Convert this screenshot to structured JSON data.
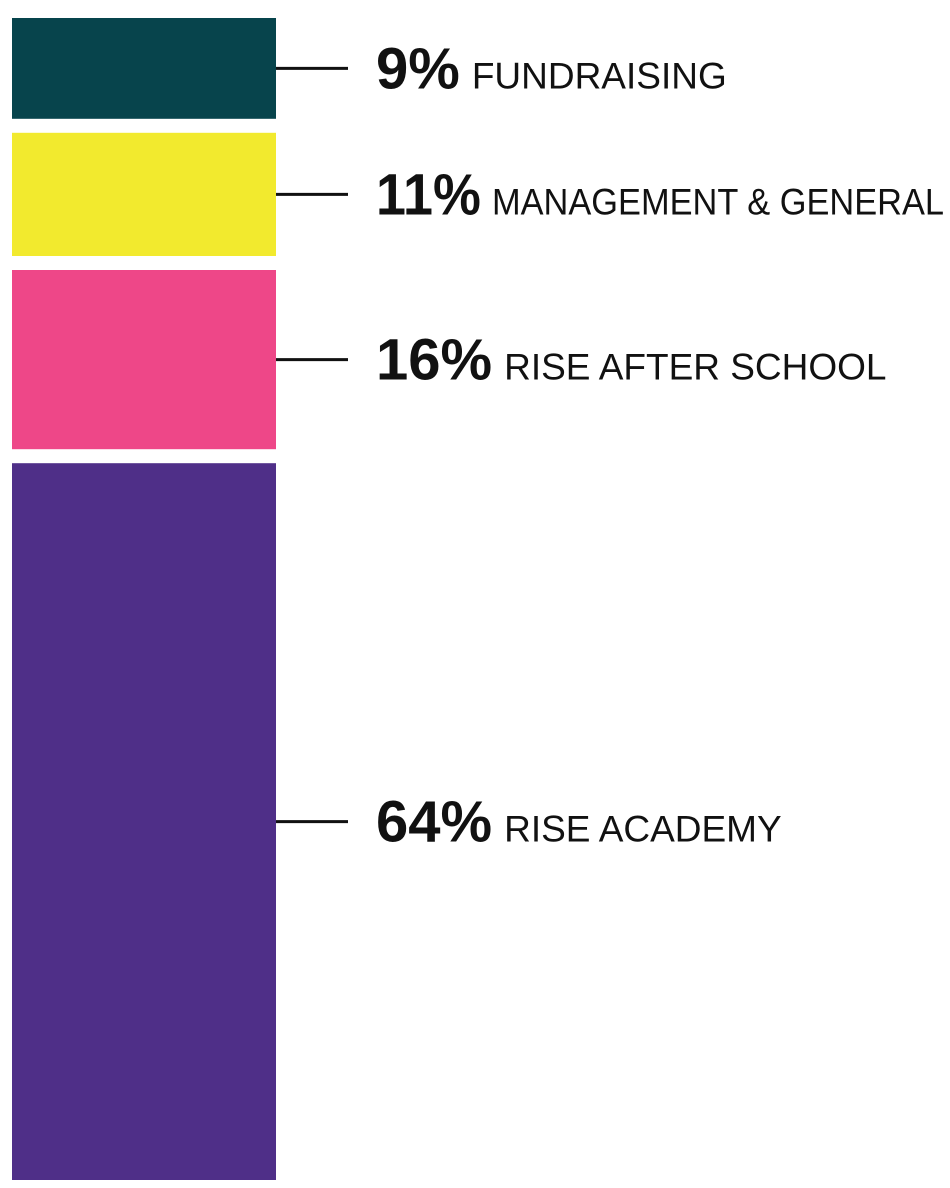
{
  "chart_data": {
    "type": "bar",
    "stacked": true,
    "orientation": "vertical",
    "segments": [
      {
        "value": 9,
        "pct_label": "9%",
        "category": "FUNDRAISING",
        "color": "#07444C"
      },
      {
        "value": 11,
        "pct_label": "11%",
        "category": "MANAGEMENT & GENERAL",
        "color": "#F2EA2E"
      },
      {
        "value": 16,
        "pct_label": "16%",
        "category": "RISE AFTER SCHOOL",
        "color": "#EE4788"
      },
      {
        "value": 64,
        "pct_label": "64%",
        "category": "RISE ACADEMY",
        "color": "#4F2F88"
      }
    ],
    "legend": "right",
    "grid": false
  }
}
